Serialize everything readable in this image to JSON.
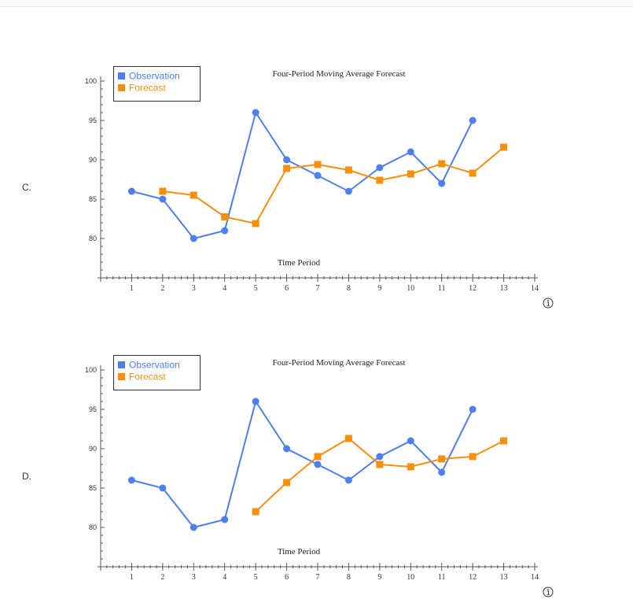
{
  "options": [
    {
      "label": "C.",
      "chart_data": {
        "type": "line",
        "title": "Four-Period Moving Average Forecast",
        "xlabel": "Time Period",
        "ylabel": "",
        "xlim": [
          0,
          14
        ],
        "ylim": [
          75,
          100
        ],
        "x_ticks": [
          1,
          2,
          3,
          4,
          5,
          6,
          7,
          8,
          9,
          10,
          11,
          12,
          13,
          14
        ],
        "y_ticks": [
          80,
          85,
          90,
          95,
          100
        ],
        "grid": false,
        "legend_position": "top-left",
        "series": [
          {
            "name": "Observation",
            "color": "#4f7fec",
            "marker": "circle",
            "x": [
              1,
              2,
              3,
              4,
              5,
              6,
              7,
              8,
              9,
              10,
              11,
              12
            ],
            "y": [
              86,
              85,
              80,
              81,
              96,
              90,
              88,
              86,
              89,
              91,
              87,
              95
            ]
          },
          {
            "name": "Forecast",
            "color": "#f5900f",
            "marker": "square",
            "x": [
              2,
              3,
              4,
              5,
              6,
              7,
              8,
              9,
              10,
              11,
              12,
              13
            ],
            "y": [
              86,
              85.5,
              82.75,
              81.9,
              88.9,
              89.4,
              88.7,
              87.4,
              88.2,
              89.5,
              88.3,
              91.6
            ]
          }
        ]
      }
    },
    {
      "label": "D.",
      "chart_data": {
        "type": "line",
        "title": "Four-Period Moving Average Forecast",
        "xlabel": "Time Period",
        "ylabel": "",
        "xlim": [
          0,
          14
        ],
        "ylim": [
          75,
          100
        ],
        "x_ticks": [
          1,
          2,
          3,
          4,
          5,
          6,
          7,
          8,
          9,
          10,
          11,
          12,
          13,
          14
        ],
        "y_ticks": [
          80,
          85,
          90,
          95,
          100
        ],
        "grid": false,
        "legend_position": "top-left",
        "series": [
          {
            "name": "Observation",
            "color": "#4f7fec",
            "marker": "circle",
            "x": [
              1,
              2,
              3,
              4,
              5,
              6,
              7,
              8,
              9,
              10,
              11,
              12
            ],
            "y": [
              86,
              85,
              80,
              81,
              96,
              90,
              88,
              86,
              89,
              91,
              87,
              95
            ]
          },
          {
            "name": "Forecast",
            "color": "#f5900f",
            "marker": "square",
            "x": [
              5,
              6,
              7,
              8,
              9,
              10,
              11,
              12,
              13
            ],
            "y": [
              82,
              85.7,
              89,
              91.3,
              88,
              87.7,
              88.7,
              89,
              91
            ]
          }
        ]
      }
    }
  ]
}
